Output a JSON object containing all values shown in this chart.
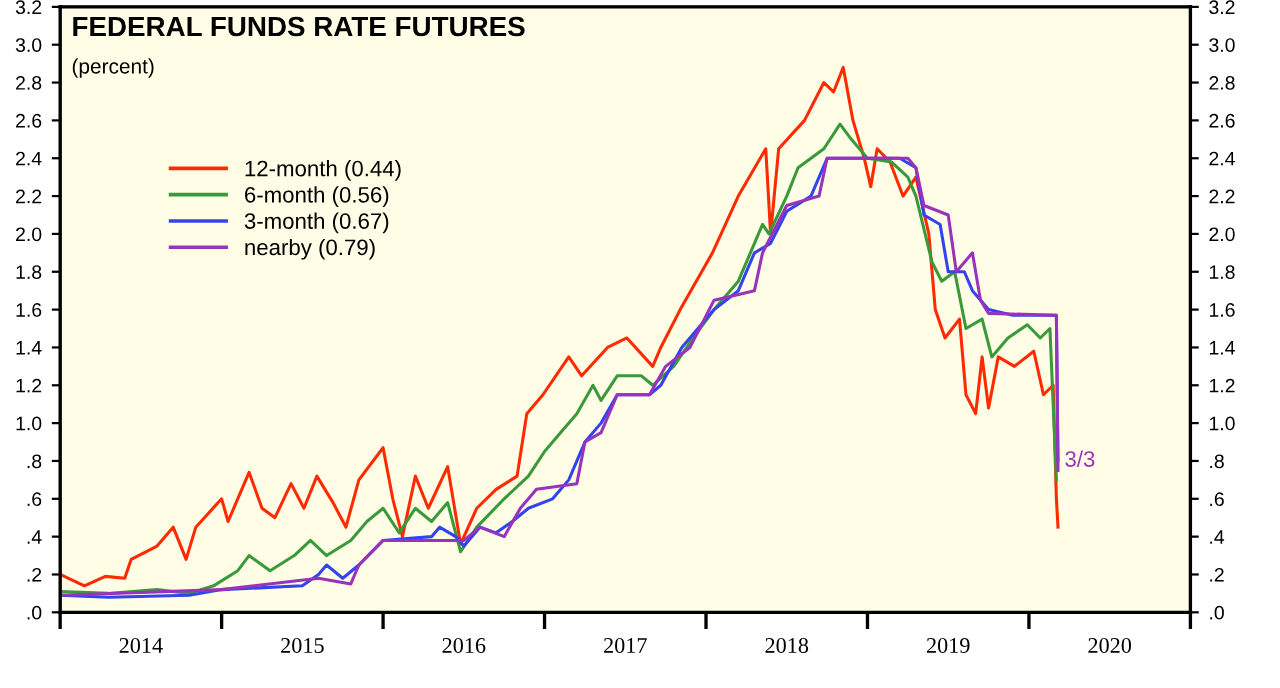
{
  "chart_data": {
    "type": "line",
    "title": "FEDERAL FUNDS RATE FUTURES",
    "subtitle": "(percent)",
    "legend": "top left",
    "grid": false,
    "marker": "none",
    "line_style": "solid",
    "annotations": [
      {
        "text": "3/3",
        "x": 2020.22,
        "y": 0.8
      }
    ],
    "xlim": [
      2014,
      2021
    ],
    "xticks": [
      {
        "value": 2014,
        "label": null
      },
      {
        "value": 2014.5,
        "label": "2014"
      },
      {
        "value": 2015,
        "label": null
      },
      {
        "value": 2015.5,
        "label": "2015"
      },
      {
        "value": 2016,
        "label": null
      },
      {
        "value": 2016.5,
        "label": "2016"
      },
      {
        "value": 2017,
        "label": null
      },
      {
        "value": 2017.5,
        "label": "2017"
      },
      {
        "value": 2018,
        "label": null
      },
      {
        "value": 2018.5,
        "label": "2018"
      },
      {
        "value": 2019,
        "label": null
      },
      {
        "value": 2019.5,
        "label": "2019"
      },
      {
        "value": 2020,
        "label": null
      },
      {
        "value": 2020.5,
        "label": "2020"
      },
      {
        "value": 2021,
        "label": null
      }
    ],
    "ylim": [
      0,
      3.2
    ],
    "yticks": [
      {
        "value": 0,
        "label": ".0"
      },
      {
        "value": 0.2,
        "label": ".2"
      },
      {
        "value": 0.4,
        "label": ".4"
      },
      {
        "value": 0.6,
        "label": ".6"
      },
      {
        "value": 0.8,
        "label": ".8"
      },
      {
        "value": 1,
        "label": "1.0"
      },
      {
        "value": 1.2,
        "label": "1.2"
      },
      {
        "value": 1.4,
        "label": "1.4"
      },
      {
        "value": 1.6,
        "label": "1.6"
      },
      {
        "value": 1.8,
        "label": "1.8"
      },
      {
        "value": 2,
        "label": "2.0"
      },
      {
        "value": 2.2,
        "label": "2.2"
      },
      {
        "value": 2.4,
        "label": "2.4"
      },
      {
        "value": 2.6,
        "label": "2.6"
      },
      {
        "value": 2.8,
        "label": "2.8"
      },
      {
        "value": 3,
        "label": "3.0"
      },
      {
        "value": 3.2,
        "label": "3.2"
      }
    ],
    "y2lim": [
      0,
      3.2
    ],
    "y2ticks": [
      {
        "value": 0,
        "label": ".0"
      },
      {
        "value": 0.2,
        "label": ".2"
      },
      {
        "value": 0.4,
        "label": ".4"
      },
      {
        "value": 0.6,
        "label": ".6"
      },
      {
        "value": 0.8,
        "label": ".8"
      },
      {
        "value": 1,
        "label": "1.0"
      },
      {
        "value": 1.2,
        "label": "1.2"
      },
      {
        "value": 1.4,
        "label": "1.4"
      },
      {
        "value": 1.6,
        "label": "1.6"
      },
      {
        "value": 1.8,
        "label": "1.8"
      },
      {
        "value": 2,
        "label": "2.0"
      },
      {
        "value": 2.2,
        "label": "2.2"
      },
      {
        "value": 2.4,
        "label": "2.4"
      },
      {
        "value": 2.6,
        "label": "2.6"
      },
      {
        "value": 2.8,
        "label": "2.8"
      },
      {
        "value": 3,
        "label": "3.0"
      },
      {
        "value": 3.2,
        "label": "3.2"
      }
    ],
    "series": [
      {
        "name": "12-month (0.44)",
        "color": "#ff2a00",
        "x": [
          2014.0,
          2014.15,
          2014.28,
          2014.4,
          2014.44,
          2014.6,
          2014.7,
          2014.78,
          2014.84,
          2015.0,
          2015.04,
          2015.17,
          2015.25,
          2015.33,
          2015.43,
          2015.51,
          2015.59,
          2015.69,
          2015.77,
          2015.85,
          2016.0,
          2016.06,
          2016.12,
          2016.2,
          2016.28,
          2016.4,
          2016.48,
          2016.58,
          2016.7,
          2016.83,
          2016.89,
          2016.99,
          2017.15,
          2017.23,
          2017.39,
          2017.51,
          2017.67,
          2017.72,
          2017.84,
          2018.04,
          2018.2,
          2018.37,
          2018.4,
          2018.45,
          2018.61,
          2018.73,
          2018.79,
          2018.85,
          2018.91,
          2018.98,
          2019.02,
          2019.06,
          2019.14,
          2019.22,
          2019.3,
          2019.38,
          2019.42,
          2019.48,
          2019.57,
          2019.61,
          2019.67,
          2019.71,
          2019.75,
          2019.81,
          2019.91,
          2020.03,
          2020.09,
          2020.15,
          2020.17,
          2020.18
        ],
        "values": [
          0.2,
          0.14,
          0.19,
          0.18,
          0.28,
          0.35,
          0.45,
          0.28,
          0.45,
          0.6,
          0.48,
          0.74,
          0.55,
          0.5,
          0.68,
          0.55,
          0.72,
          0.58,
          0.45,
          0.7,
          0.87,
          0.6,
          0.4,
          0.72,
          0.55,
          0.77,
          0.36,
          0.55,
          0.65,
          0.72,
          1.05,
          1.15,
          1.35,
          1.25,
          1.4,
          1.45,
          1.3,
          1.4,
          1.6,
          1.9,
          2.2,
          2.45,
          2.0,
          2.45,
          2.6,
          2.8,
          2.75,
          2.88,
          2.6,
          2.4,
          2.25,
          2.45,
          2.38,
          2.2,
          2.3,
          2.0,
          1.6,
          1.45,
          1.55,
          1.15,
          1.05,
          1.35,
          1.08,
          1.35,
          1.3,
          1.38,
          1.15,
          1.2,
          0.6,
          0.45
        ]
      },
      {
        "name": "6-month (0.56)",
        "color": "#3a9a3a",
        "x": [
          2014.0,
          2014.3,
          2014.6,
          2014.8,
          2014.95,
          2015.1,
          2015.17,
          2015.3,
          2015.45,
          2015.55,
          2015.65,
          2015.8,
          2015.9,
          2016.0,
          2016.1,
          2016.2,
          2016.3,
          2016.4,
          2016.48,
          2016.58,
          2016.75,
          2016.9,
          2017.0,
          2017.1,
          2017.2,
          2017.3,
          2017.35,
          2017.45,
          2017.6,
          2017.67,
          2017.8,
          2017.92,
          2018.05,
          2018.2,
          2018.35,
          2018.39,
          2018.5,
          2018.57,
          2018.73,
          2018.83,
          2018.9,
          2019.0,
          2019.15,
          2019.25,
          2019.3,
          2019.4,
          2019.46,
          2019.54,
          2019.61,
          2019.71,
          2019.77,
          2019.87,
          2019.99,
          2020.07,
          2020.13,
          2020.17
        ],
        "values": [
          0.11,
          0.1,
          0.12,
          0.1,
          0.14,
          0.22,
          0.3,
          0.22,
          0.3,
          0.38,
          0.3,
          0.38,
          0.48,
          0.55,
          0.42,
          0.55,
          0.48,
          0.58,
          0.32,
          0.45,
          0.6,
          0.72,
          0.85,
          0.95,
          1.05,
          1.2,
          1.12,
          1.25,
          1.25,
          1.2,
          1.3,
          1.45,
          1.6,
          1.75,
          2.05,
          2.0,
          2.2,
          2.35,
          2.45,
          2.58,
          2.5,
          2.4,
          2.38,
          2.3,
          2.2,
          1.85,
          1.75,
          1.8,
          1.5,
          1.55,
          1.35,
          1.45,
          1.52,
          1.45,
          1.5,
          0.7
        ]
      },
      {
        "name": "3-month (0.67)",
        "color": "#3344ee",
        "x": [
          2014.0,
          2014.3,
          2014.8,
          2015.0,
          2015.5,
          2015.6,
          2015.65,
          2015.75,
          2015.85,
          2016.0,
          2016.3,
          2016.35,
          2016.45,
          2016.5,
          2016.6,
          2016.7,
          2016.8,
          2016.9,
          2017.05,
          2017.15,
          2017.25,
          2017.35,
          2017.45,
          2017.65,
          2017.72,
          2017.85,
          2018.05,
          2018.2,
          2018.3,
          2018.4,
          2018.5,
          2018.65,
          2018.75,
          2019.2,
          2019.3,
          2019.35,
          2019.45,
          2019.5,
          2019.6,
          2019.65,
          2019.75,
          2019.9,
          2020.17,
          2020.18
        ],
        "values": [
          0.09,
          0.08,
          0.09,
          0.12,
          0.14,
          0.2,
          0.25,
          0.18,
          0.25,
          0.38,
          0.4,
          0.45,
          0.4,
          0.35,
          0.45,
          0.42,
          0.48,
          0.55,
          0.6,
          0.7,
          0.9,
          1.0,
          1.15,
          1.15,
          1.2,
          1.4,
          1.6,
          1.7,
          1.9,
          1.95,
          2.12,
          2.2,
          2.4,
          2.4,
          2.35,
          2.1,
          2.05,
          1.8,
          1.8,
          1.7,
          1.6,
          1.57,
          1.57,
          0.8
        ]
      },
      {
        "name": "nearby (0.79)",
        "color": "#9933bb",
        "x": [
          2014.0,
          2015.0,
          2015.6,
          2015.8,
          2015.85,
          2016.0,
          2016.5,
          2016.6,
          2016.75,
          2016.85,
          2016.95,
          2017.2,
          2017.25,
          2017.35,
          2017.45,
          2017.65,
          2017.75,
          2017.9,
          2018.05,
          2018.3,
          2018.35,
          2018.5,
          2018.7,
          2018.75,
          2019.25,
          2019.3,
          2019.35,
          2019.5,
          2019.55,
          2019.65,
          2019.7,
          2019.75,
          2020.17,
          2020.18
        ],
        "values": [
          0.09,
          0.12,
          0.18,
          0.15,
          0.25,
          0.38,
          0.38,
          0.45,
          0.4,
          0.55,
          0.65,
          0.68,
          0.9,
          0.95,
          1.15,
          1.15,
          1.3,
          1.4,
          1.65,
          1.7,
          1.9,
          2.15,
          2.2,
          2.4,
          2.4,
          2.35,
          2.15,
          2.1,
          1.8,
          1.9,
          1.65,
          1.58,
          1.57,
          0.75
        ]
      }
    ]
  }
}
